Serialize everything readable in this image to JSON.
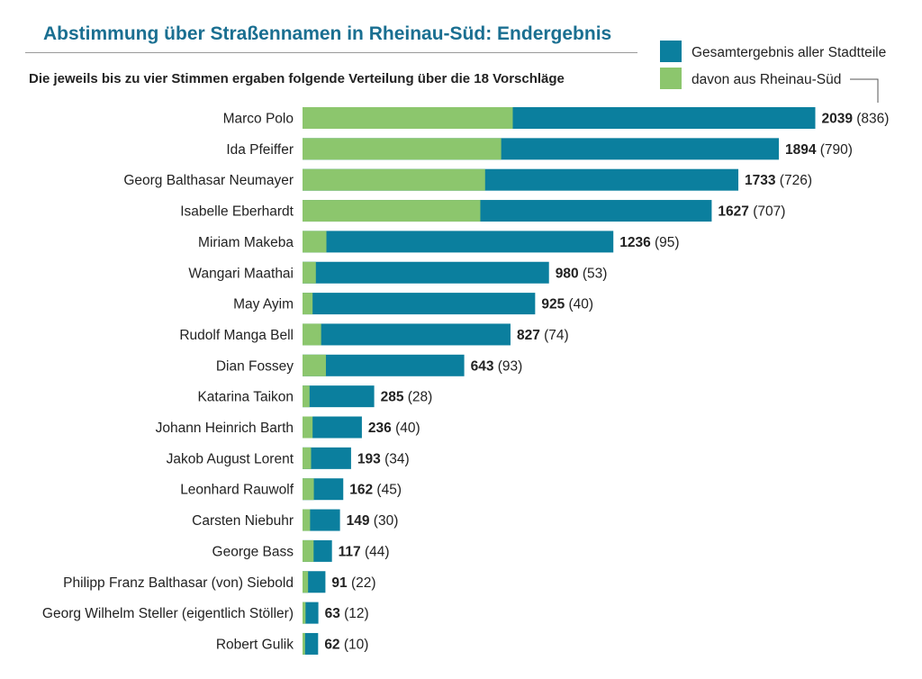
{
  "title": "Abstimmung über Straßennamen in Rheinau-Süd: Endergebnis",
  "subtitle": "Die jeweils bis zu vier Stimmen ergaben folgende Verteilung über die 18 Vorschläge",
  "colors": {
    "total": "#0b7f9e",
    "local": "#8cc66d",
    "title": "#1a6f91"
  },
  "chart_data": {
    "type": "bar",
    "orientation": "horizontal",
    "categories": [
      "Marco Polo",
      "Ida Pfeiffer",
      "Georg Balthasar Neumayer",
      "Isabelle Eberhardt",
      "Miriam Makeba",
      "Wangari Maathai",
      "May Ayim",
      "Rudolf Manga Bell",
      "Dian Fossey",
      "Katarina Taikon",
      "Johann Heinrich Barth",
      "Jakob August Lorent",
      "Leonhard Rauwolf",
      "Carsten Niebuhr",
      "George Bass",
      "Philipp Franz Balthasar (von) Siebold",
      "Georg Wilhelm Steller (eigentlich Stöller)",
      "Robert Gulik"
    ],
    "series": [
      {
        "name": "Gesamtergebnis aller Stadtteile",
        "values": [
          2039,
          1894,
          1733,
          1627,
          1236,
          980,
          925,
          827,
          643,
          285,
          236,
          193,
          162,
          149,
          117,
          91,
          63,
          62
        ]
      },
      {
        "name": "davon aus Rheinau-Süd",
        "values": [
          836,
          790,
          726,
          707,
          95,
          53,
          40,
          74,
          93,
          28,
          40,
          34,
          45,
          30,
          44,
          22,
          12,
          10
        ]
      }
    ],
    "legend_position": "top-right",
    "grid": false
  }
}
